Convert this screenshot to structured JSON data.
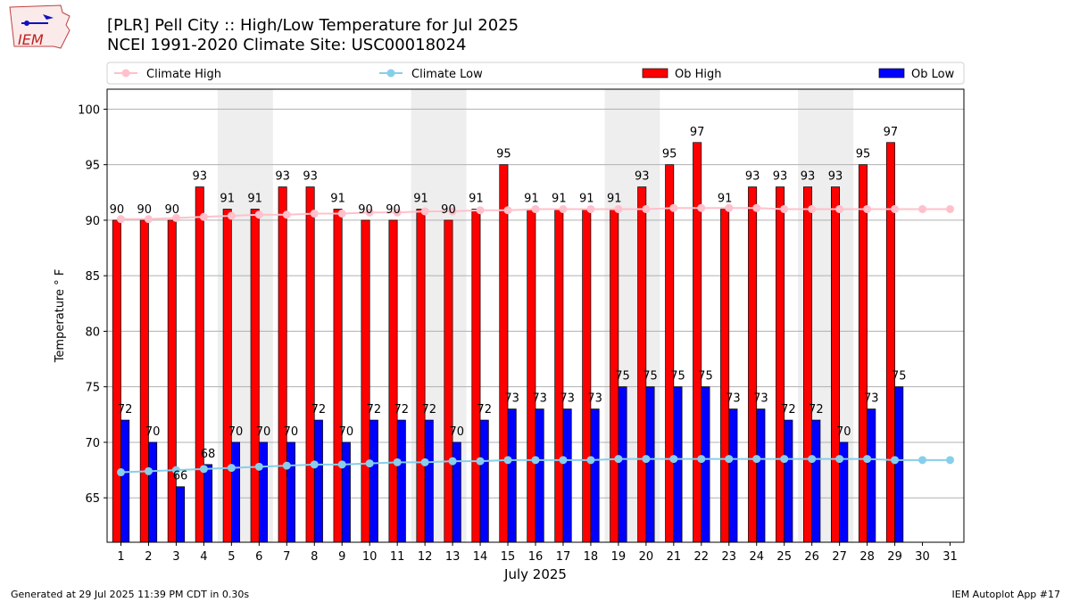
{
  "title_line1": "[PLR] Pell City :: High/Low Temperature for Jul 2025",
  "title_line2": "NCEI 1991-2020 Climate Site: USC00018024",
  "logo_text": "IEM",
  "footer_left": "Generated at 29 Jul 2025 11:39 PM CDT in 0.30s",
  "footer_right": "IEM Autoplot App #17",
  "colors": {
    "ob_high": "#ff0000",
    "ob_low": "#0000ff",
    "climate_high": "#ffc0cb",
    "climate_low": "#87ceeb",
    "weekend_shade": "#eeeeee",
    "grid": "#b0b0b0"
  },
  "chart_data": {
    "type": "bar",
    "xlabel": "July 2025",
    "ylabel": "Temperature ° F",
    "ylim": [
      61,
      101.8
    ],
    "yticks": [
      65,
      70,
      75,
      80,
      85,
      90,
      95,
      100
    ],
    "grid": "horizontal",
    "legend_placement": "top",
    "categories": [
      "1",
      "2",
      "3",
      "4",
      "5",
      "6",
      "7",
      "8",
      "9",
      "10",
      "11",
      "12",
      "13",
      "14",
      "15",
      "16",
      "17",
      "18",
      "19",
      "20",
      "21",
      "22",
      "23",
      "24",
      "25",
      "26",
      "27",
      "28",
      "29",
      "30",
      "31"
    ],
    "shaded_days": [
      [
        5,
        6
      ],
      [
        12,
        13
      ],
      [
        19,
        20
      ],
      [
        26,
        27
      ]
    ],
    "series": [
      {
        "name": "Climate High",
        "kind": "line",
        "values": [
          90.1,
          90.1,
          90.2,
          90.3,
          90.4,
          90.5,
          90.5,
          90.6,
          90.6,
          90.7,
          90.7,
          90.8,
          90.8,
          90.9,
          90.9,
          91.0,
          91.0,
          91.0,
          91.0,
          91.0,
          91.1,
          91.1,
          91.1,
          91.1,
          91.0,
          91.0,
          91.0,
          91.0,
          91.0,
          91.0,
          91.0
        ]
      },
      {
        "name": "Climate Low",
        "kind": "line",
        "values": [
          67.3,
          67.4,
          67.5,
          67.6,
          67.7,
          67.8,
          67.9,
          68.0,
          68.0,
          68.1,
          68.2,
          68.2,
          68.3,
          68.3,
          68.4,
          68.4,
          68.4,
          68.4,
          68.5,
          68.5,
          68.5,
          68.5,
          68.5,
          68.5,
          68.5,
          68.5,
          68.5,
          68.5,
          68.4,
          68.4,
          68.4
        ]
      },
      {
        "name": "Ob High",
        "kind": "bar",
        "values": [
          90,
          90,
          90,
          93,
          91,
          91,
          93,
          93,
          91,
          90,
          90,
          91,
          90,
          91,
          95,
          91,
          91,
          91,
          91,
          93,
          95,
          97,
          91,
          93,
          93,
          93,
          93,
          95,
          97,
          null,
          null
        ]
      },
      {
        "name": "Ob Low",
        "kind": "bar",
        "values": [
          72,
          70,
          66,
          68,
          70,
          70,
          70,
          72,
          70,
          72,
          72,
          72,
          70,
          72,
          73,
          73,
          73,
          73,
          75,
          75,
          75,
          75,
          73,
          73,
          72,
          72,
          70,
          73,
          75,
          null,
          null
        ]
      }
    ]
  }
}
